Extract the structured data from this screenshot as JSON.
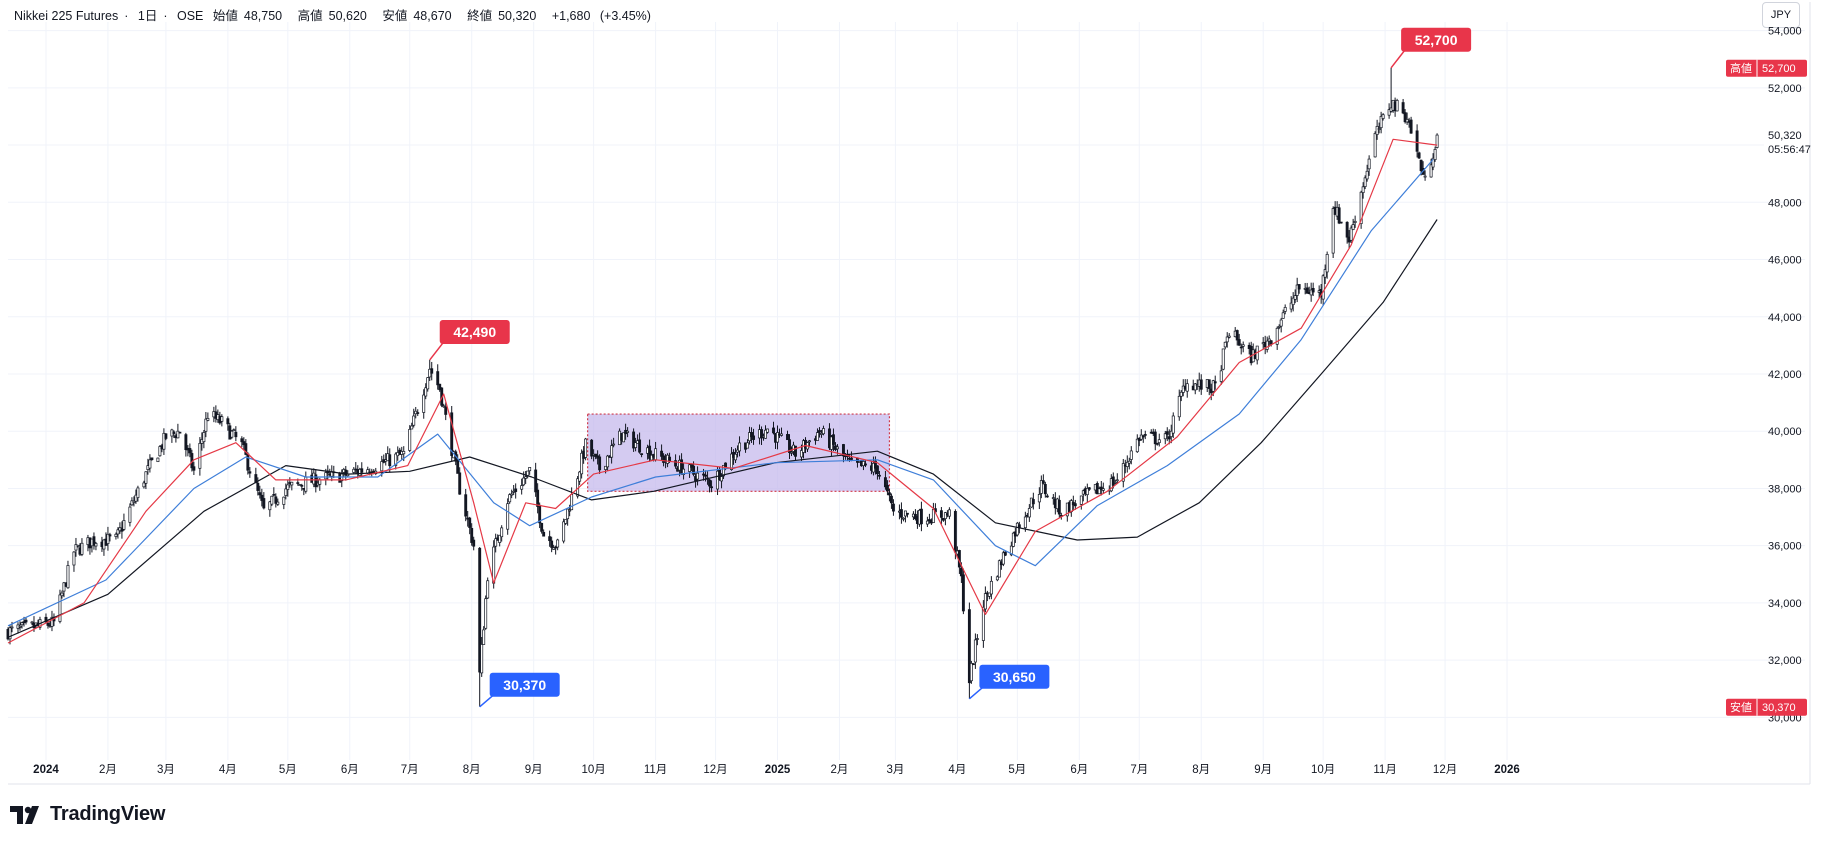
{
  "header": {
    "symbol": "Nikkei 225 Futures",
    "interval": "1日",
    "exchange": "OSE",
    "open_label": "始値",
    "open": "48,750",
    "high_label": "高値",
    "high": "50,620",
    "low_label": "安値",
    "low": "48,670",
    "close_label": "終値",
    "close": "50,320",
    "change": "+1,680",
    "change_pct": "(+3.45%)"
  },
  "currency_button": "JPY",
  "brand": {
    "name": "TradingView"
  },
  "colors": {
    "up": "#131722",
    "down": "#131722",
    "ma_short": "#e53946",
    "ma_mid": "#3f7fd9",
    "ma_long": "#131722",
    "range_fill": "#c5b9ec",
    "range_border": "#d0394a",
    "high_tag": "#e8354a",
    "low_tag": "#2962ff",
    "grid": "#f0f3fa",
    "axis_text": "#131722"
  },
  "chart_data": {
    "type": "candlestick",
    "title": "",
    "currency": "JPY",
    "ylim": [
      29000,
      54300
    ],
    "y_ticks": [
      30000,
      32000,
      34000,
      36000,
      38000,
      40000,
      42000,
      44000,
      46000,
      48000,
      50000,
      52000,
      54000
    ],
    "y_tick_labels": [
      "30,000",
      "32,000",
      "34,000",
      "36,000",
      "38,000",
      "40,000",
      "42,000",
      "44,000",
      "46,000",
      "48,000",
      "50,000",
      "52,000",
      "54,000"
    ],
    "x_range": [
      "2023-12-13",
      "2026-01-30"
    ],
    "x_ticks": [
      {
        "date": "2024-01-01",
        "label": "2024"
      },
      {
        "date": "2024-02-01",
        "label": "2月"
      },
      {
        "date": "2024-03-01",
        "label": "3月"
      },
      {
        "date": "2024-04-01",
        "label": "4月"
      },
      {
        "date": "2024-05-01",
        "label": "5月"
      },
      {
        "date": "2024-06-01",
        "label": "6月"
      },
      {
        "date": "2024-07-01",
        "label": "7月"
      },
      {
        "date": "2024-08-01",
        "label": "8月"
      },
      {
        "date": "2024-09-01",
        "label": "9月"
      },
      {
        "date": "2024-10-01",
        "label": "10月"
      },
      {
        "date": "2024-11-01",
        "label": "11月"
      },
      {
        "date": "2024-12-01",
        "label": "12月"
      },
      {
        "date": "2025-01-01",
        "label": "2025"
      },
      {
        "date": "2025-02-01",
        "label": "2月"
      },
      {
        "date": "2025-03-01",
        "label": "3月"
      },
      {
        "date": "2025-04-01",
        "label": "4月"
      },
      {
        "date": "2025-05-01",
        "label": "5月"
      },
      {
        "date": "2025-06-01",
        "label": "6月"
      },
      {
        "date": "2025-07-01",
        "label": "7月"
      },
      {
        "date": "2025-08-01",
        "label": "8月"
      },
      {
        "date": "2025-09-01",
        "label": "9月"
      },
      {
        "date": "2025-10-01",
        "label": "10月"
      },
      {
        "date": "2025-11-01",
        "label": "11月"
      },
      {
        "date": "2025-12-01",
        "label": "12月"
      },
      {
        "date": "2026-01-01",
        "label": "2026"
      }
    ],
    "close_path": [
      [
        "2023-12-13",
        33000
      ],
      [
        "2024-01-05",
        33300
      ],
      [
        "2024-01-15",
        35800
      ],
      [
        "2024-01-25",
        36200
      ],
      [
        "2024-02-05",
        36200
      ],
      [
        "2024-02-20",
        38500
      ],
      [
        "2024-03-01",
        39800
      ],
      [
        "2024-03-08",
        40000
      ],
      [
        "2024-03-15",
        38600
      ],
      [
        "2024-03-22",
        40600
      ],
      [
        "2024-03-29",
        40300
      ],
      [
        "2024-04-08",
        39500
      ],
      [
        "2024-04-19",
        37200
      ],
      [
        "2024-04-30",
        38000
      ],
      [
        "2024-05-15",
        38300
      ],
      [
        "2024-05-31",
        38500
      ],
      [
        "2024-06-14",
        38800
      ],
      [
        "2024-06-28",
        39200
      ],
      [
        "2024-07-05",
        40800
      ],
      [
        "2024-07-11",
        42200
      ],
      [
        "2024-07-16",
        41500
      ],
      [
        "2024-07-26",
        38000
      ],
      [
        "2024-08-02",
        36000
      ],
      [
        "2024-08-05",
        31500
      ],
      [
        "2024-08-09",
        35000
      ],
      [
        "2024-08-19",
        37600
      ],
      [
        "2024-08-30",
        38600
      ],
      [
        "2024-09-06",
        36400
      ],
      [
        "2024-09-13",
        36000
      ],
      [
        "2024-09-20",
        37700
      ],
      [
        "2024-09-27",
        39500
      ],
      [
        "2024-10-04",
        38700
      ],
      [
        "2024-10-15",
        39900
      ],
      [
        "2024-10-31",
        39200
      ],
      [
        "2024-11-15",
        38700
      ],
      [
        "2024-11-29",
        38200
      ],
      [
        "2024-12-13",
        39500
      ],
      [
        "2024-12-27",
        40100
      ],
      [
        "2025-01-10",
        39200
      ],
      [
        "2025-01-22",
        40000
      ],
      [
        "2025-02-07",
        38800
      ],
      [
        "2025-02-20",
        38700
      ],
      [
        "2025-02-28",
        37200
      ],
      [
        "2025-03-14",
        37000
      ],
      [
        "2025-03-28",
        37100
      ],
      [
        "2025-04-03",
        34800
      ],
      [
        "2025-04-07",
        31300
      ],
      [
        "2025-04-14",
        34000
      ],
      [
        "2025-04-25",
        35800
      ],
      [
        "2025-05-02",
        36800
      ],
      [
        "2025-05-13",
        38100
      ],
      [
        "2025-05-23",
        37200
      ],
      [
        "2025-06-06",
        37800
      ],
      [
        "2025-06-20",
        38300
      ],
      [
        "2025-07-01",
        39800
      ],
      [
        "2025-07-15",
        39700
      ],
      [
        "2025-07-24",
        41700
      ],
      [
        "2025-08-08",
        41500
      ],
      [
        "2025-08-15",
        43500
      ],
      [
        "2025-08-26",
        42600
      ],
      [
        "2025-09-05",
        43300
      ],
      [
        "2025-09-19",
        45000
      ],
      [
        "2025-09-30",
        44800
      ],
      [
        "2025-10-06",
        47900
      ],
      [
        "2025-10-14",
        46700
      ],
      [
        "2025-10-27",
        50300
      ],
      [
        "2025-11-04",
        51500
      ],
      [
        "2025-11-12",
        51000
      ],
      [
        "2025-11-21",
        48700
      ],
      [
        "2025-11-27",
        50320
      ]
    ],
    "ma_short_path": [
      [
        "2023-12-13",
        32600
      ],
      [
        "2024-01-20",
        34000
      ],
      [
        "2024-02-20",
        37200
      ],
      [
        "2024-03-15",
        39000
      ],
      [
        "2024-04-05",
        39600
      ],
      [
        "2024-04-25",
        38300
      ],
      [
        "2024-05-30",
        38300
      ],
      [
        "2024-06-30",
        38800
      ],
      [
        "2024-07-18",
        41300
      ],
      [
        "2024-08-02",
        37500
      ],
      [
        "2024-08-12",
        34700
      ],
      [
        "2024-08-28",
        37500
      ],
      [
        "2024-09-12",
        37300
      ],
      [
        "2024-10-01",
        38500
      ],
      [
        "2024-11-01",
        39000
      ],
      [
        "2024-12-10",
        38700
      ],
      [
        "2025-01-15",
        39500
      ],
      [
        "2025-02-20",
        38900
      ],
      [
        "2025-03-20",
        37300
      ],
      [
        "2025-04-15",
        33600
      ],
      [
        "2025-05-10",
        36500
      ],
      [
        "2025-06-15",
        37900
      ],
      [
        "2025-07-20",
        39800
      ],
      [
        "2025-08-20",
        42400
      ],
      [
        "2025-09-20",
        43600
      ],
      [
        "2025-10-15",
        46500
      ],
      [
        "2025-11-05",
        50200
      ],
      [
        "2025-11-27",
        50000
      ]
    ],
    "ma_mid_path": [
      [
        "2023-12-13",
        33200
      ],
      [
        "2024-01-31",
        34800
      ],
      [
        "2024-03-15",
        38000
      ],
      [
        "2024-04-10",
        39100
      ],
      [
        "2024-05-10",
        38400
      ],
      [
        "2024-06-15",
        38400
      ],
      [
        "2024-07-15",
        39900
      ],
      [
        "2024-08-12",
        37500
      ],
      [
        "2024-08-30",
        36700
      ],
      [
        "2024-09-30",
        37700
      ],
      [
        "2024-11-01",
        38400
      ],
      [
        "2024-12-31",
        38900
      ],
      [
        "2025-02-20",
        39000
      ],
      [
        "2025-03-20",
        38300
      ],
      [
        "2025-04-20",
        36000
      ],
      [
        "2025-05-10",
        35300
      ],
      [
        "2025-06-10",
        37400
      ],
      [
        "2025-07-15",
        38800
      ],
      [
        "2025-08-20",
        40600
      ],
      [
        "2025-09-20",
        43200
      ],
      [
        "2025-10-25",
        47000
      ],
      [
        "2025-11-25",
        49500
      ]
    ],
    "ma_long_path": [
      [
        "2023-12-13",
        32800
      ],
      [
        "2024-02-01",
        34300
      ],
      [
        "2024-03-20",
        37200
      ],
      [
        "2024-04-30",
        38800
      ],
      [
        "2024-05-31",
        38500
      ],
      [
        "2024-07-01",
        38600
      ],
      [
        "2024-07-31",
        39100
      ],
      [
        "2024-08-31",
        38400
      ],
      [
        "2024-09-30",
        37600
      ],
      [
        "2024-10-31",
        37900
      ],
      [
        "2024-12-31",
        38900
      ],
      [
        "2025-02-20",
        39300
      ],
      [
        "2025-03-20",
        38500
      ],
      [
        "2025-04-20",
        36800
      ],
      [
        "2025-05-31",
        36200
      ],
      [
        "2025-06-30",
        36300
      ],
      [
        "2025-07-31",
        37500
      ],
      [
        "2025-08-31",
        39600
      ],
      [
        "2025-09-30",
        42000
      ],
      [
        "2025-10-31",
        44500
      ],
      [
        "2025-11-27",
        47400
      ]
    ],
    "range_box": {
      "x_start": "2024-09-28",
      "x_end": "2025-02-26",
      "y_low": 37900,
      "y_high": 40600
    },
    "annotations": [
      {
        "kind": "high",
        "date": "2024-07-11",
        "value": 42490,
        "label": "42,490"
      },
      {
        "kind": "low",
        "date": "2024-08-05",
        "value": 30370,
        "label": "30,370"
      },
      {
        "kind": "low",
        "date": "2025-04-07",
        "value": 30650,
        "label": "30,650"
      },
      {
        "kind": "high",
        "date": "2025-11-04",
        "value": 52700,
        "label": "52,700"
      }
    ],
    "price_tags": [
      {
        "kind": "high",
        "name": "高値",
        "value": 52700,
        "label": "52,700"
      },
      {
        "kind": "low",
        "name": "安値",
        "value": 30370,
        "label": "30,370"
      },
      {
        "kind": "last",
        "value": 50320,
        "label": "50,320",
        "countdown": "05:56:47"
      }
    ]
  }
}
